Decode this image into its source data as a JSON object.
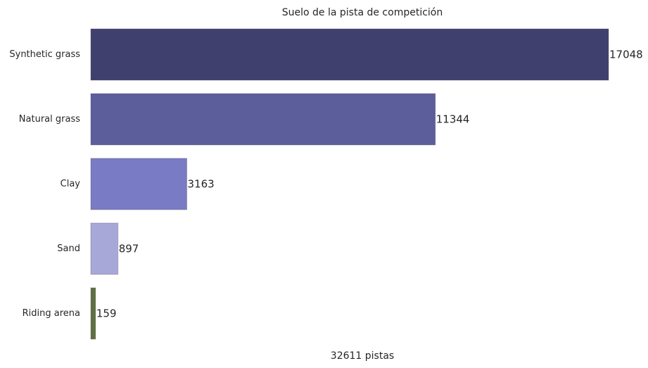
{
  "chart_data": {
    "type": "bar",
    "orientation": "horizontal",
    "title": "Suelo de la pista de competición",
    "xlabel": "32611 pistas",
    "ylabel": "",
    "categories": [
      "Synthetic grass",
      "Natural grass",
      "Clay",
      "Sand",
      "Riding arena"
    ],
    "values": [
      17048,
      11344,
      3163,
      897,
      159
    ],
    "value_labels": [
      "17048",
      "11344",
      "3163",
      "897",
      "159"
    ],
    "colors": [
      "#40406f",
      "#5b5e9a",
      "#797bc4",
      "#a8a8d8",
      "#5f7040"
    ],
    "xlim": [
      0,
      17048
    ],
    "grid": false,
    "legend": "none"
  }
}
